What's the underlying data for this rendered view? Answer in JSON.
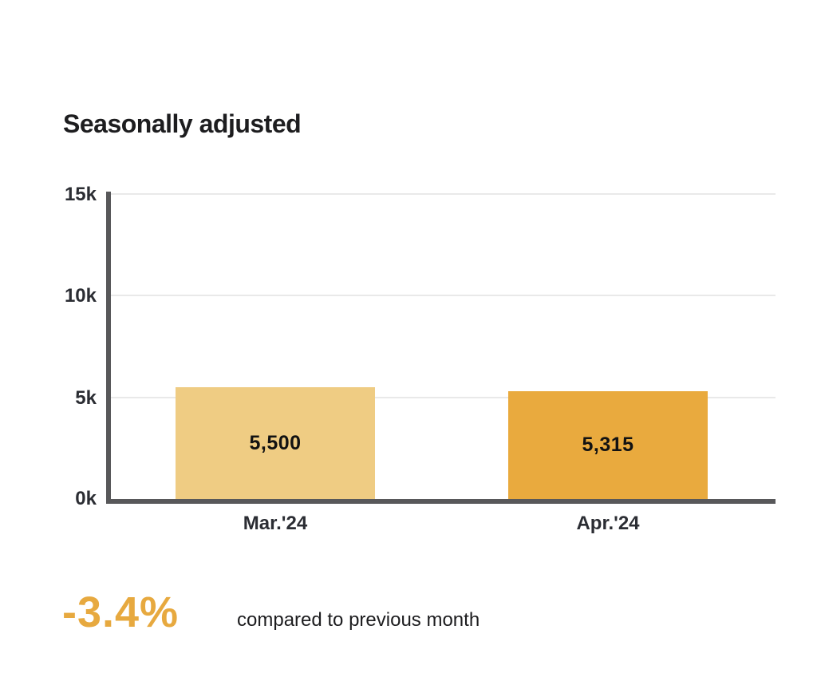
{
  "title": "Seasonally adjusted",
  "chart_data": {
    "type": "bar",
    "title": "Seasonally adjusted",
    "categories": [
      "Mar.'24",
      "Apr.'24"
    ],
    "values": [
      5500,
      5315
    ],
    "value_labels": [
      "5,500",
      "5,315"
    ],
    "bar_colors": [
      "#efcc83",
      "#e9aa3e"
    ],
    "xlabel": "",
    "ylabel": "",
    "ylim": [
      0,
      15000
    ],
    "ytick_labels": [
      "15k",
      "10k",
      "5k",
      "0k"
    ],
    "grid": true,
    "legend": false
  },
  "footer": {
    "percent_change": "-3.4%",
    "caption": "compared to previous month"
  },
  "colors": {
    "accent": "#e7a93f",
    "ink": "#1d1d1f",
    "label": "#2b2d33",
    "axis": "#58585a",
    "grid": "#e9e9e9",
    "bar-value-text": "#121212"
  }
}
